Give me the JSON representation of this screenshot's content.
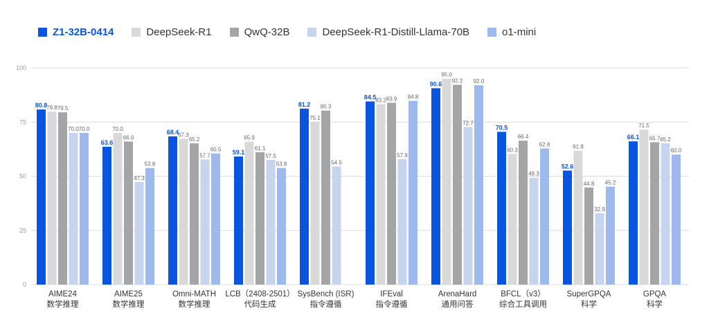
{
  "chart_data": {
    "type": "bar",
    "categories": [
      [
        "AIME24",
        "数学推理"
      ],
      [
        "AIME25",
        "数学推理"
      ],
      [
        "Omni-MATH",
        "数学推理"
      ],
      [
        "LCB（2408-2501）",
        "代码生成"
      ],
      [
        "SysBench (ISR)",
        "指令遵循"
      ],
      [
        "IFEval",
        "指令遵循"
      ],
      [
        "ArenaHard",
        "通用问答"
      ],
      [
        "BFCL（v3）",
        "综合工具调用"
      ],
      [
        "SuperGPQA",
        "科学"
      ],
      [
        "GPQA",
        "科学"
      ]
    ],
    "series": [
      {
        "name": "Z1-32B-0414",
        "color": "#0a55e0",
        "values": [
          80.8,
          63.6,
          68.4,
          59.1,
          81.2,
          84.5,
          90.6,
          70.5,
          52.6,
          66.1
        ]
      },
      {
        "name": "DeepSeek-R1",
        "color": "#d9d9d9",
        "values": [
          79.8,
          70.0,
          67.3,
          65.9,
          75.1,
          83.2,
          95.0,
          60.3,
          61.8,
          71.5
        ]
      },
      {
        "name": "QwQ-32B",
        "color": "#a3a5a6",
        "values": [
          79.5,
          66.0,
          65.2,
          61.1,
          80.3,
          83.9,
          92.2,
          66.4,
          44.8,
          65.7
        ]
      },
      {
        "name": "DeepSeek-R1-Distill-Llama-70B",
        "color": "#c6d4ee",
        "values": [
          70.0,
          47.3,
          57.7,
          57.5,
          54.5,
          57.9,
          72.7,
          49.3,
          32.9,
          65.2
        ]
      },
      {
        "name": "o1-mini",
        "color": "#9eb9ec",
        "values": [
          70.0,
          53.8,
          60.5,
          53.8,
          null,
          84.8,
          92.0,
          62.8,
          45.2,
          60.0
        ]
      }
    ],
    "yticks": [
      0,
      25,
      50,
      75,
      100
    ],
    "ylim": [
      0,
      100
    ],
    "grid": true,
    "legend": "top-left"
  }
}
